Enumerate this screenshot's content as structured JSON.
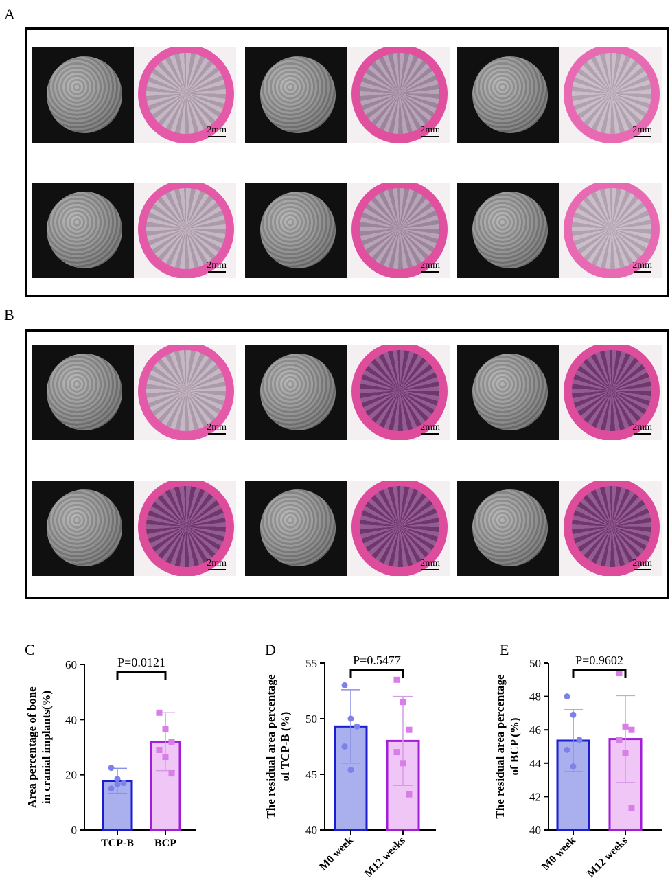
{
  "panels": {
    "a": "A",
    "b": "B",
    "c": "C",
    "d": "D",
    "e": "E"
  },
  "scale_label": "2mm",
  "colors": {
    "blue_fill": "#aab0ee",
    "blue_edge": "#1a1ed0",
    "pink_fill": "#f0c6f6",
    "pink_edge": "#a21ed8",
    "stain_pink": "#e0509e",
    "stain_dark": "#7a3a78"
  },
  "chart_data": [
    {
      "type": "bar",
      "categories": [
        "TCP-B",
        "BCP"
      ],
      "values": [
        17.8,
        32.0
      ],
      "errors": [
        4.5,
        10.5
      ],
      "points": [
        [
          22.5,
          18.5,
          17.0,
          15.0,
          16.5
        ],
        [
          42.5,
          36.5,
          32.0,
          29.0,
          26.5,
          20.5
        ]
      ],
      "ylabel": "Area percentage of bone in cranial implants(%)",
      "ylim": [
        0,
        60
      ],
      "yticks": [
        0,
        20,
        40,
        60
      ],
      "pvalue": "P=0.0121"
    },
    {
      "type": "bar",
      "categories": [
        "M0 week",
        "M12 weeks"
      ],
      "values": [
        49.3,
        48.0
      ],
      "errors": [
        3.3,
        4.0
      ],
      "points": [
        [
          53.0,
          50.0,
          49.3,
          47.5,
          45.4
        ],
        [
          53.5,
          51.5,
          49.0,
          47.0,
          46.0,
          43.2
        ]
      ],
      "ylabel": "The residual area percentage of TCP-B (%)",
      "ylim": [
        40,
        55
      ],
      "yticks": [
        40,
        45,
        50,
        55
      ],
      "pvalue": "P=0.5477"
    },
    {
      "type": "bar",
      "categories": [
        "M0 week",
        "M12 weeks"
      ],
      "values": [
        45.35,
        45.45
      ],
      "errors": [
        1.85,
        2.6
      ],
      "points": [
        [
          48.0,
          46.9,
          45.4,
          44.8,
          43.8
        ],
        [
          49.4,
          46.2,
          46.0,
          45.4,
          44.6,
          41.3
        ]
      ],
      "ylabel": "The residual area percentage of BCP (%)",
      "ylim": [
        40,
        50
      ],
      "yticks": [
        40,
        42,
        44,
        46,
        48,
        50
      ],
      "pvalue": "P=0.9602"
    }
  ]
}
